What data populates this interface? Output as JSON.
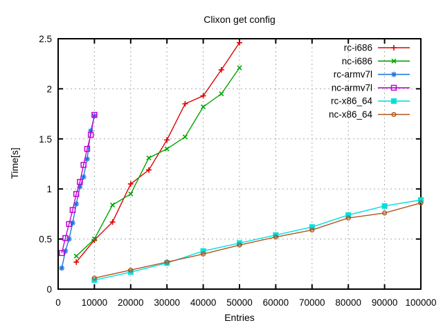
{
  "window": {
    "background": "#ffffff",
    "text_color": "#000000"
  },
  "chart_data": {
    "type": "line",
    "title": "Clixon get config",
    "xlabel": "Entries",
    "ylabel": "Time[s]",
    "xlim": [
      0,
      100000
    ],
    "ylim": [
      0,
      2.5
    ],
    "x_ticks": [
      0,
      10000,
      20000,
      30000,
      40000,
      50000,
      60000,
      70000,
      80000,
      90000,
      100000
    ],
    "x_tick_labels": [
      "0",
      "10000",
      "20000",
      "30000",
      "40000",
      "50000",
      "60000",
      "70000",
      "80000",
      "90000",
      "100000"
    ],
    "y_ticks": [
      0,
      0.5,
      1,
      1.5,
      2,
      2.5
    ],
    "y_tick_labels": [
      "0",
      "0.5",
      "1",
      "1.5",
      "2",
      "2.5"
    ],
    "grid": true,
    "grid_color": "#a8a8a8",
    "axis_color": "#000000",
    "legend_position": "top-right-inside",
    "series": [
      {
        "name": "rc-i686",
        "color": "#dd0000",
        "marker": "plus",
        "x": [
          5000,
          10000,
          15000,
          20000,
          25000,
          30000,
          35000,
          40000,
          45000,
          50000
        ],
        "y": [
          0.27,
          0.49,
          0.67,
          1.05,
          1.19,
          1.49,
          1.85,
          1.93,
          2.19,
          2.46
        ]
      },
      {
        "name": "nc-i686",
        "color": "#00a400",
        "marker": "cross",
        "x": [
          5000,
          10000,
          15000,
          20000,
          25000,
          30000,
          35000,
          40000,
          45000,
          50000
        ],
        "y": [
          0.33,
          0.5,
          0.84,
          0.95,
          1.31,
          1.4,
          1.52,
          1.82,
          1.95,
          2.21
        ]
      },
      {
        "name": "rc-armv7l",
        "color": "#1e74e0",
        "marker": "asterisk",
        "x": [
          1000,
          2000,
          3000,
          4000,
          5000,
          6000,
          7000,
          8000,
          9000,
          10000
        ],
        "y": [
          0.21,
          0.38,
          0.5,
          0.66,
          0.85,
          1.02,
          1.12,
          1.3,
          1.58,
          1.73
        ]
      },
      {
        "name": "nc-armv7l",
        "color": "#c400d8",
        "marker": "open-square",
        "x": [
          1000,
          2000,
          3000,
          4000,
          5000,
          6000,
          7000,
          8000,
          9000,
          10000
        ],
        "y": [
          0.36,
          0.51,
          0.65,
          0.79,
          0.95,
          1.07,
          1.24,
          1.4,
          1.54,
          1.74
        ]
      },
      {
        "name": "rc-x86_64",
        "color": "#00e0e0",
        "marker": "filled-square",
        "x": [
          10000,
          20000,
          30000,
          40000,
          50000,
          60000,
          70000,
          80000,
          90000,
          100000
        ],
        "y": [
          0.09,
          0.17,
          0.26,
          0.38,
          0.46,
          0.54,
          0.62,
          0.74,
          0.83,
          0.89
        ]
      },
      {
        "name": "nc-x86_64",
        "color": "#b0541a",
        "marker": "open-circle",
        "x": [
          10000,
          20000,
          30000,
          40000,
          50000,
          60000,
          70000,
          80000,
          90000,
          100000
        ],
        "y": [
          0.11,
          0.19,
          0.27,
          0.35,
          0.44,
          0.52,
          0.59,
          0.71,
          0.76,
          0.86
        ]
      }
    ]
  }
}
